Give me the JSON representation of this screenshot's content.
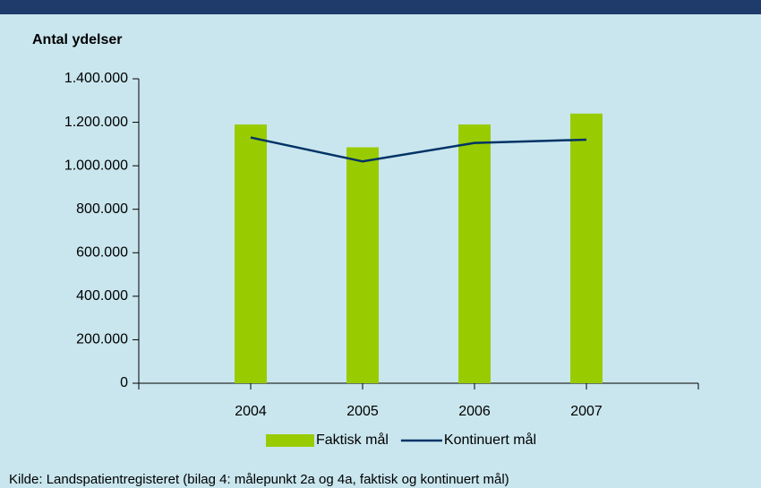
{
  "chart_data": {
    "type": "bar_line",
    "y_axis_label": "Antal ydelser",
    "categories": [
      "2004",
      "2005",
      "2006",
      "2007"
    ],
    "series": [
      {
        "name": "Faktisk mål",
        "type": "bar",
        "color": "#99cc00",
        "values": [
          1190000,
          1085000,
          1190000,
          1240000
        ]
      },
      {
        "name": "Kontinuert mål",
        "type": "line",
        "color": "#003366",
        "values": [
          1130000,
          1020000,
          1105000,
          1120000
        ]
      }
    ],
    "ylim": [
      0,
      1400000
    ],
    "yticks": [
      0,
      {
        "value": 200000,
        "label": "200.000"
      },
      {
        "value": 400000,
        "label": "400.000"
      },
      {
        "value": 600000,
        "label": "600.000"
      },
      {
        "value": 800000,
        "label": "800.000"
      },
      {
        "value": 1000000,
        "label": "1.000.000"
      },
      {
        "value": 1200000,
        "label": "1.200.000"
      },
      {
        "value": 1400000,
        "label": "1.400.000"
      }
    ],
    "grid": false,
    "legend": "bottom",
    "source": "Kilde: Landspatientregisteret (bilag 4: målepunkt 2a og 4a, faktisk og kontinuert mål)"
  }
}
